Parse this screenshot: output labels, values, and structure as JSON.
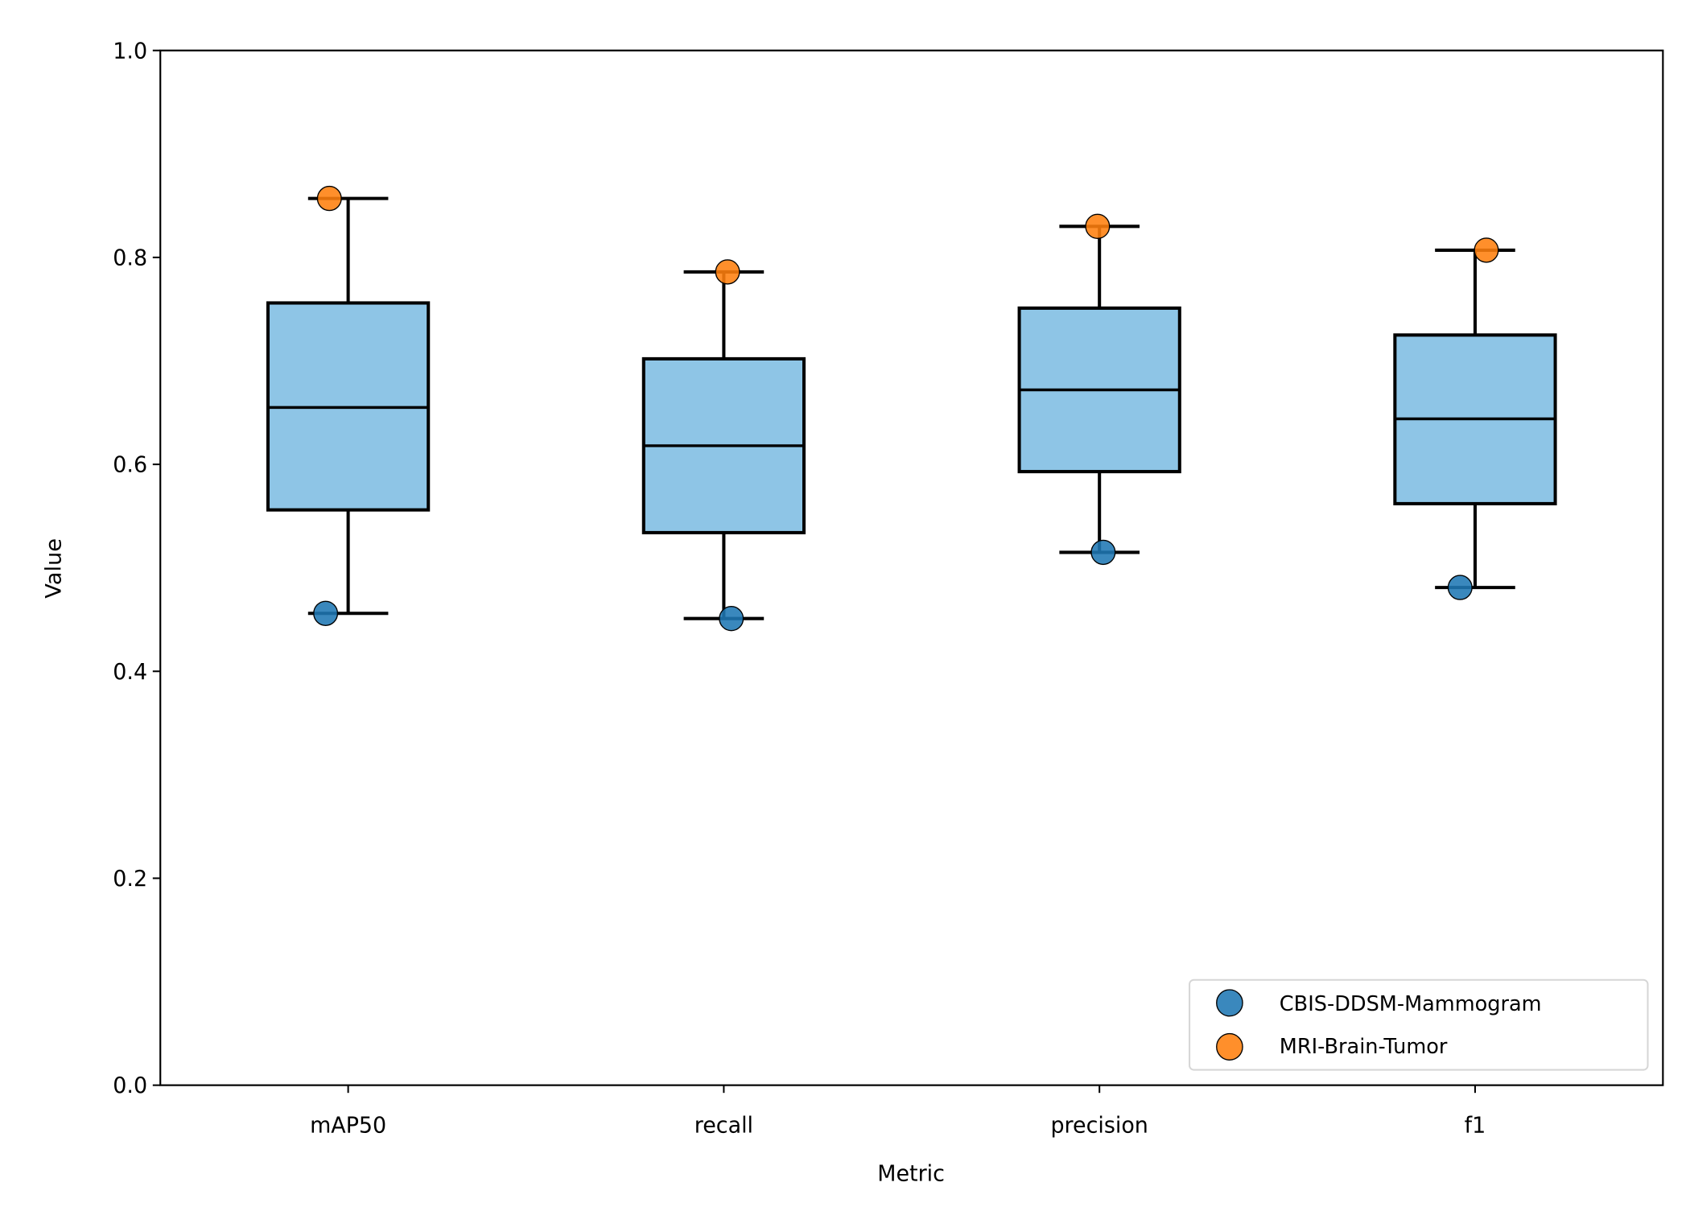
{
  "chart_data": {
    "type": "box",
    "title": "",
    "xlabel": "Metric",
    "ylabel": "Value",
    "ylim": [
      0,
      1
    ],
    "yticks": [
      "0.0",
      "0.2",
      "0.4",
      "0.6",
      "0.8",
      "1.0"
    ],
    "grid": false,
    "legend_placement": "lower-right",
    "box_color": "#8ec5e6",
    "categories": [
      "mAP50",
      "recall",
      "precision",
      "f1"
    ],
    "boxes": [
      {
        "whislo": 0.456,
        "q1": 0.556,
        "med": 0.655,
        "q3": 0.756,
        "whishi": 0.857
      },
      {
        "whislo": 0.451,
        "q1": 0.534,
        "med": 0.618,
        "q3": 0.702,
        "whishi": 0.786
      },
      {
        "whislo": 0.515,
        "q1": 0.593,
        "med": 0.672,
        "q3": 0.751,
        "whishi": 0.83
      },
      {
        "whislo": 0.481,
        "q1": 0.562,
        "med": 0.644,
        "q3": 0.725,
        "whishi": 0.807
      }
    ],
    "series": [
      {
        "name": "CBIS-DDSM-Mammogram",
        "color": "#1f77b4",
        "values": [
          0.456,
          0.451,
          0.515,
          0.481
        ]
      },
      {
        "name": "MRI-Brain-Tumor",
        "color": "#ff7f0e",
        "values": [
          0.857,
          0.786,
          0.83,
          0.807
        ]
      }
    ]
  }
}
